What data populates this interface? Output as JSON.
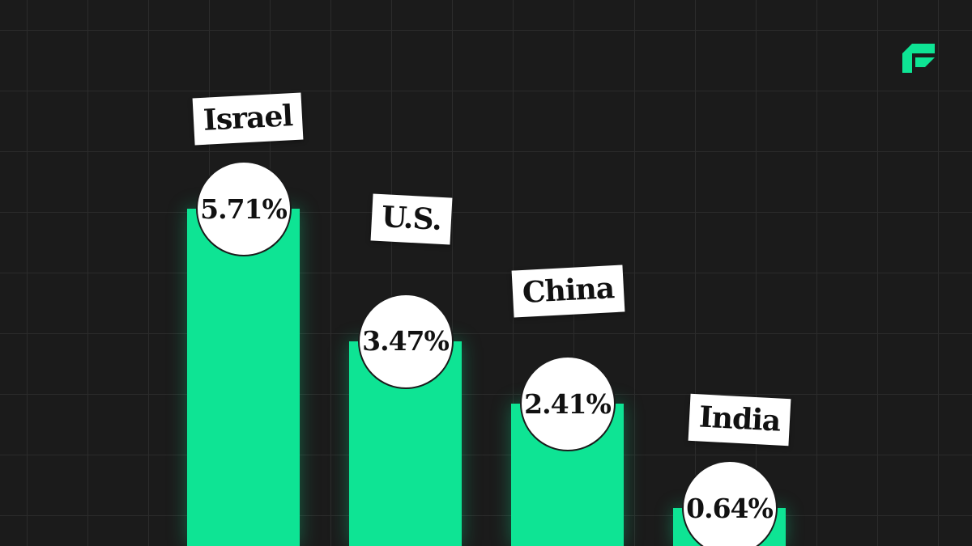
{
  "colors": {
    "background": "#1b1b1b",
    "grid": "#2c2c2c",
    "bar": "#0ee494",
    "label_bg": "#ffffff",
    "label_text": "#111111"
  },
  "logo": {
    "icon": "brand-logo-icon"
  },
  "chart_data": {
    "type": "bar",
    "categories": [
      "Israel",
      "U.S.",
      "China",
      "India"
    ],
    "values": [
      5.71,
      3.47,
      2.41,
      0.64
    ],
    "value_labels": [
      "5.71%",
      "3.47%",
      "2.41%",
      "0.64%"
    ],
    "title": "",
    "xlabel": "",
    "ylabel": "",
    "ylim": [
      0,
      8.3
    ],
    "grid": true,
    "legend": "none"
  }
}
